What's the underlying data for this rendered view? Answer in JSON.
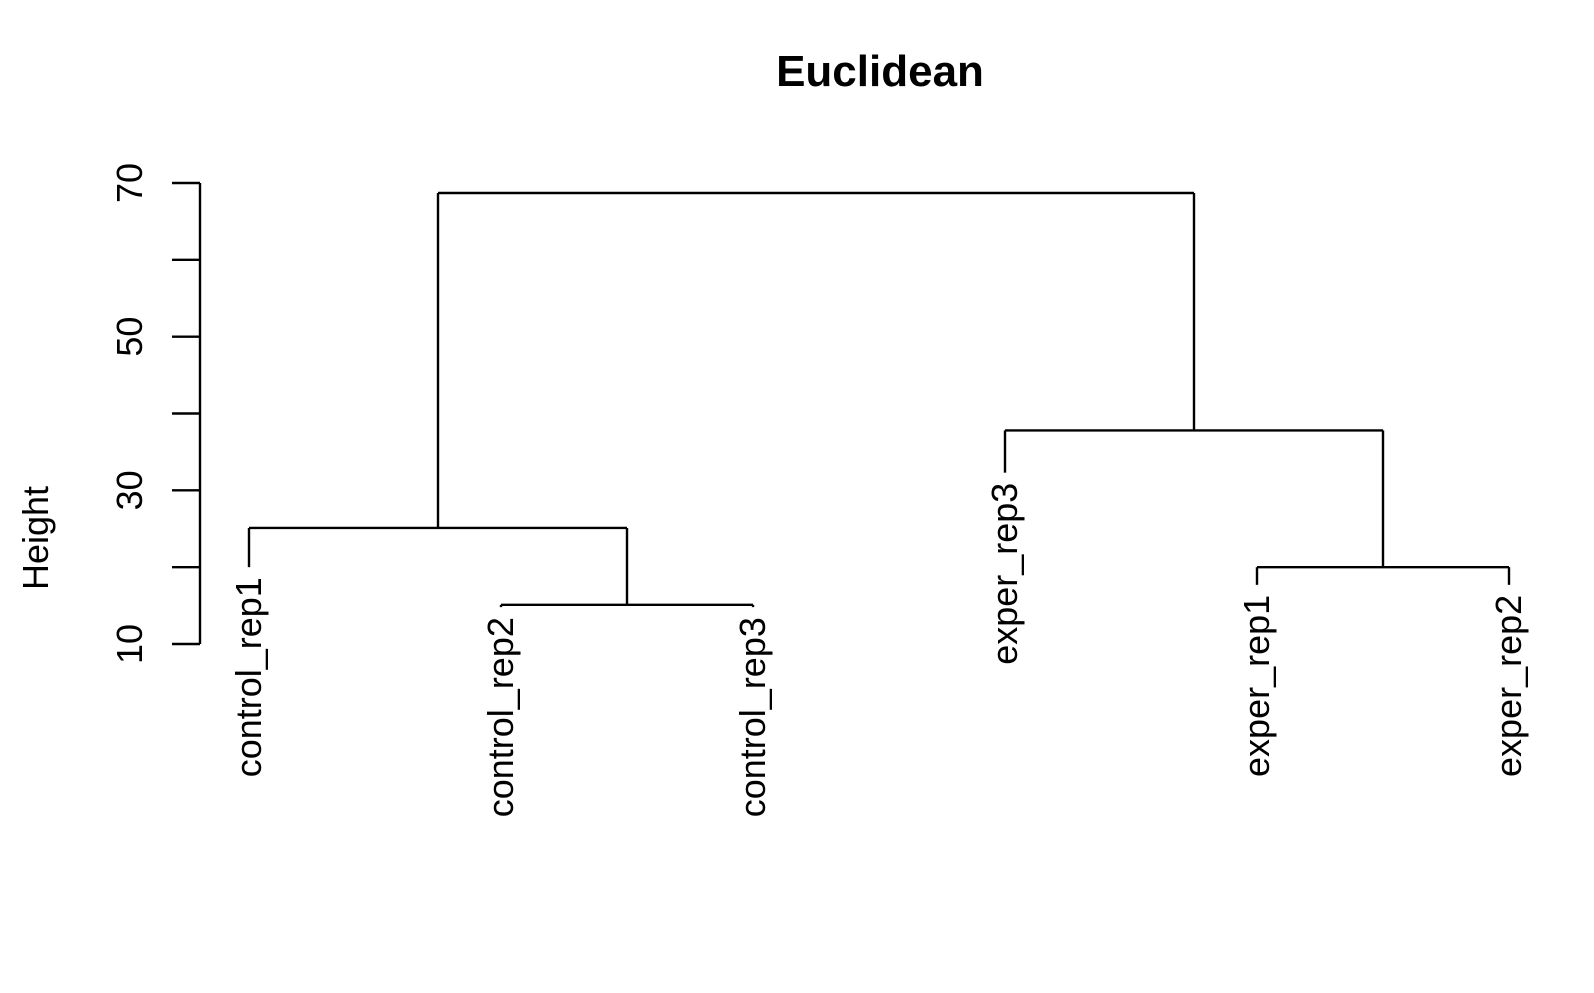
{
  "chart_data": {
    "type": "dendrogram",
    "title": "Euclidean",
    "xlabel": "",
    "ylabel": "Height",
    "ylim": [
      10,
      70
    ],
    "y_ticks": [
      10,
      20,
      30,
      40,
      50,
      60,
      70
    ],
    "y_tick_labels": [
      "10",
      "",
      "30",
      "",
      "50",
      "",
      "70"
    ],
    "grid": false,
    "leaves": [
      {
        "label": "control_rep1",
        "height": 20
      },
      {
        "label": "control_rep2",
        "height": 14.8
      },
      {
        "label": "control_rep3",
        "height": 14.8
      },
      {
        "label": "exper_rep3",
        "height": 32.3
      },
      {
        "label": "exper_rep1",
        "height": 17.7
      },
      {
        "label": "exper_rep2",
        "height": 17.7
      }
    ],
    "merges": [
      {
        "members": [
          "control_rep2",
          "control_rep3"
        ],
        "height": 15.1
      },
      {
        "members": [
          "exper_rep1",
          "exper_rep2"
        ],
        "height": 20.0
      },
      {
        "members": [
          "control_rep1",
          "control_rep2",
          "control_rep3"
        ],
        "height": 25.1
      },
      {
        "members": [
          "exper_rep3",
          "exper_rep1",
          "exper_rep2"
        ],
        "height": 37.8
      },
      {
        "members": [
          "control_rep1",
          "control_rep2",
          "control_rep3",
          "exper_rep3",
          "exper_rep1",
          "exper_rep2"
        ],
        "height": 68.7
      }
    ],
    "tree": {
      "height": 68.7,
      "children": [
        {
          "height": 25.1,
          "children": [
            {
              "leaf": 0
            },
            {
              "height": 15.1,
              "children": [
                {
                  "leaf": 1
                },
                {
                  "leaf": 2
                }
              ]
            }
          ]
        },
        {
          "height": 37.8,
          "children": [
            {
              "leaf": 3
            },
            {
              "height": 20.0,
              "children": [
                {
                  "leaf": 4
                },
                {
                  "leaf": 5
                }
              ]
            }
          ]
        }
      ]
    }
  }
}
